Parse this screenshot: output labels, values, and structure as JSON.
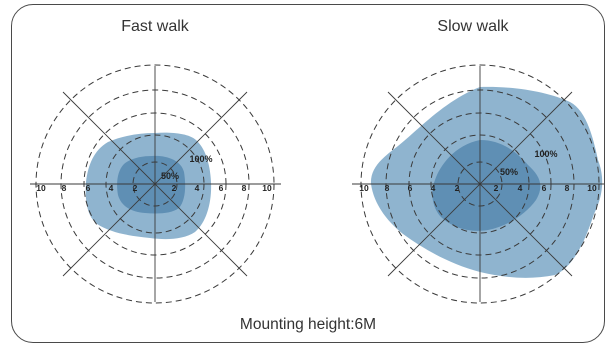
{
  "panels": [
    {
      "title": "Fast walk",
      "tick_labels_left": [
        "10",
        "8",
        "6",
        "4",
        "2"
      ],
      "tick_labels_right": [
        "2",
        "4",
        "6",
        "8",
        "10"
      ],
      "outer_zone_label": "100%",
      "inner_zone_label": "50%"
    },
    {
      "title": "Slow walk",
      "tick_labels_left": [
        "10",
        "8",
        "6",
        "4",
        "2"
      ],
      "tick_labels_right": [
        "2",
        "4",
        "6",
        "8",
        "10"
      ],
      "outer_zone_label": "100%",
      "inner_zone_label": "50%"
    }
  ],
  "caption": "Mounting height:6M",
  "colors": {
    "outer_zone": "#8fb4cf",
    "inner_zone": "#5f8fb4",
    "lines": "#3a3a3a"
  }
}
